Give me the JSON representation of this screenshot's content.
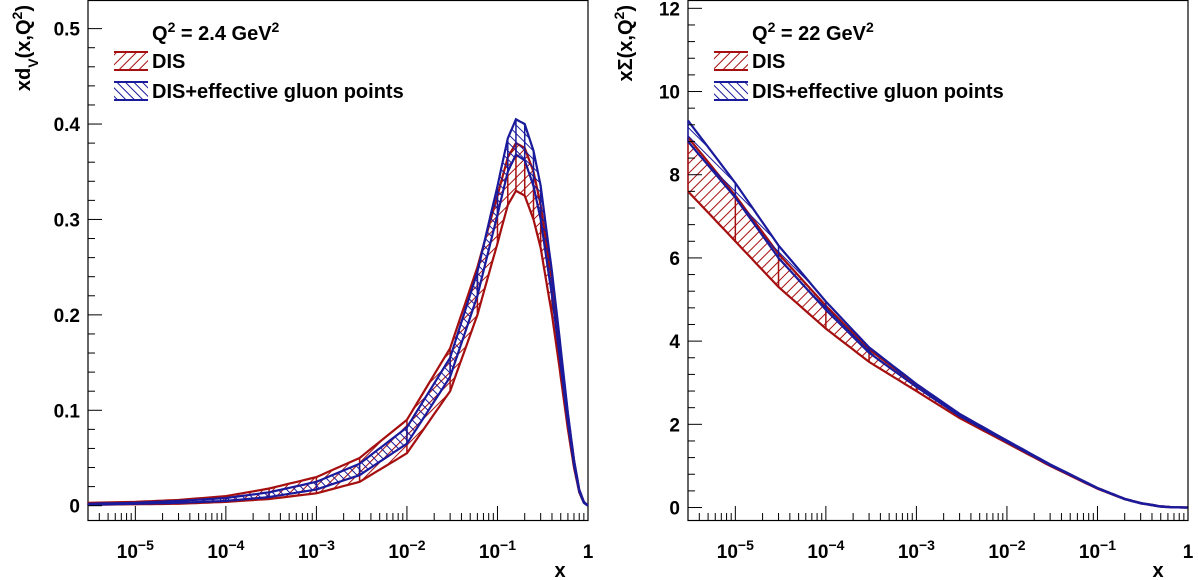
{
  "chart_data": [
    {
      "type": "line",
      "panel": "left",
      "annotation": {
        "base": "Q",
        "sup1": "2",
        "mid": " = 2.4 GeV",
        "sup2": "2"
      },
      "ylabel": {
        "pre": "xd",
        "sub": "V",
        "mid": "(x,Q",
        "sup": "2",
        "post": ")"
      },
      "xlabel": "",
      "xscale": "log",
      "xlim": [
        3e-06,
        1
      ],
      "ylim": [
        -0.015,
        0.53
      ],
      "yticks": [
        {
          "v": 0,
          "label": "0"
        },
        {
          "v": 0.1,
          "label": "0.1"
        },
        {
          "v": 0.2,
          "label": "0.2"
        },
        {
          "v": 0.3,
          "label": "0.3"
        },
        {
          "v": 0.4,
          "label": "0.4"
        },
        {
          "v": 0.5,
          "label": "0.5"
        }
      ],
      "xticks": [
        {
          "exp": -5,
          "label": "10",
          "sup": "−5"
        },
        {
          "exp": -4,
          "label": "10",
          "sup": "−4"
        },
        {
          "exp": -3,
          "label": "10",
          "sup": "−3"
        },
        {
          "exp": -2,
          "label": "10",
          "sup": "−2"
        },
        {
          "exp": -1,
          "label": "10",
          "sup": "−1"
        },
        {
          "exp": 0,
          "label": "1",
          "sup": ""
        }
      ],
      "legend": {
        "position": "top-left",
        "entries": [
          "DIS",
          "DIS+effective gluon points"
        ]
      },
      "series": [
        {
          "name": "DIS",
          "color": "#a50f0f",
          "x": [
            3e-06,
            1e-05,
            3e-05,
            0.0001,
            0.0003,
            0.001,
            0.003,
            0.01,
            0.03,
            0.06,
            0.1,
            0.13,
            0.16,
            0.2,
            0.25,
            0.3,
            0.4,
            0.5,
            0.6,
            0.7,
            0.8,
            0.9,
            1.0
          ],
          "lower": [
            0.001,
            0.0015,
            0.002,
            0.004,
            0.007,
            0.013,
            0.025,
            0.055,
            0.12,
            0.2,
            0.275,
            0.315,
            0.33,
            0.325,
            0.3,
            0.27,
            0.2,
            0.135,
            0.08,
            0.04,
            0.014,
            0.003,
            0
          ],
          "upper": [
            0.003,
            0.004,
            0.006,
            0.01,
            0.018,
            0.03,
            0.05,
            0.09,
            0.165,
            0.25,
            0.325,
            0.365,
            0.38,
            0.375,
            0.35,
            0.315,
            0.235,
            0.16,
            0.095,
            0.048,
            0.017,
            0.004,
            0
          ]
        },
        {
          "name": "DIS+effective gluon points",
          "color": "#1a1a9c",
          "x": [
            3e-06,
            1e-05,
            3e-05,
            0.0001,
            0.0003,
            0.001,
            0.003,
            0.01,
            0.03,
            0.06,
            0.1,
            0.13,
            0.16,
            0.2,
            0.25,
            0.3,
            0.4,
            0.5,
            0.6,
            0.7,
            0.8,
            0.9,
            1.0
          ],
          "lower": [
            0.001,
            0.002,
            0.003,
            0.005,
            0.009,
            0.017,
            0.032,
            0.065,
            0.135,
            0.22,
            0.305,
            0.35,
            0.368,
            0.362,
            0.335,
            0.3,
            0.22,
            0.147,
            0.087,
            0.043,
            0.015,
            0.003,
            0
          ],
          "upper": [
            0.002,
            0.003,
            0.005,
            0.008,
            0.014,
            0.025,
            0.044,
            0.082,
            0.155,
            0.245,
            0.335,
            0.385,
            0.405,
            0.4,
            0.372,
            0.335,
            0.245,
            0.165,
            0.097,
            0.048,
            0.017,
            0.004,
            0
          ]
        }
      ]
    },
    {
      "type": "line",
      "panel": "right",
      "annotation": {
        "base": "Q",
        "sup1": "2",
        "mid": " = 22 GeV",
        "sup2": "2"
      },
      "ylabel": {
        "pre": "xΣ",
        "sub": "",
        "mid": "(x,Q",
        "sup": "2",
        "post": ")"
      },
      "xlabel": "x",
      "xscale": "log",
      "xlim": [
        3e-06,
        1
      ],
      "ylim": [
        -0.3,
        12.2
      ],
      "yticks": [
        {
          "v": 0,
          "label": "0"
        },
        {
          "v": 2,
          "label": "2"
        },
        {
          "v": 4,
          "label": "4"
        },
        {
          "v": 6,
          "label": "6"
        },
        {
          "v": 8,
          "label": "8"
        },
        {
          "v": 10,
          "label": "10"
        },
        {
          "v": 12,
          "label": "12"
        }
      ],
      "xticks": [
        {
          "exp": -5,
          "label": "10",
          "sup": "−5"
        },
        {
          "exp": -4,
          "label": "10",
          "sup": "−4"
        },
        {
          "exp": -3,
          "label": "10",
          "sup": "−3"
        },
        {
          "exp": -2,
          "label": "10",
          "sup": "−2"
        },
        {
          "exp": -1,
          "label": "10",
          "sup": "−1"
        },
        {
          "exp": 0,
          "label": "1",
          "sup": ""
        }
      ],
      "legend": {
        "position": "top-left",
        "entries": [
          "DIS",
          "DIS+effective gluon points"
        ]
      },
      "series": [
        {
          "name": "DIS",
          "color": "#a50f0f",
          "x": [
            3e-06,
            1e-05,
            3e-05,
            0.0001,
            0.0003,
            0.001,
            0.003,
            0.01,
            0.03,
            0.1,
            0.2,
            0.3,
            0.5,
            0.7,
            1.0
          ],
          "lower": [
            7.6,
            6.4,
            5.3,
            4.3,
            3.5,
            2.8,
            2.15,
            1.55,
            1.0,
            0.45,
            0.2,
            0.1,
            0.02,
            0.003,
            0
          ],
          "upper": [
            8.9,
            7.5,
            6.1,
            4.85,
            3.8,
            2.95,
            2.25,
            1.6,
            1.03,
            0.47,
            0.21,
            0.11,
            0.03,
            0.005,
            0
          ]
        },
        {
          "name": "DIS+effective gluon points",
          "color": "#1a1a9c",
          "x": [
            3e-06,
            1e-05,
            3e-05,
            0.0001,
            0.0003,
            0.001,
            0.003,
            0.01,
            0.03,
            0.1,
            0.2,
            0.3,
            0.5,
            0.7,
            1.0
          ],
          "lower": [
            8.8,
            7.45,
            6.0,
            4.75,
            3.72,
            2.9,
            2.2,
            1.58,
            1.02,
            0.46,
            0.2,
            0.1,
            0.02,
            0.003,
            0
          ],
          "upper": [
            9.3,
            7.8,
            6.3,
            4.95,
            3.85,
            2.97,
            2.25,
            1.61,
            1.04,
            0.47,
            0.21,
            0.11,
            0.03,
            0.005,
            0
          ]
        }
      ]
    }
  ]
}
